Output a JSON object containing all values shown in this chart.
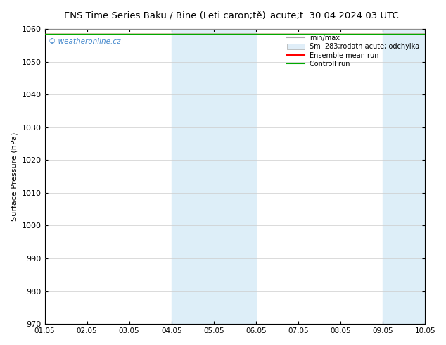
{
  "title": "ENS Time Series Baku / Bine (Leti caron;tě)",
  "title_right": "acute;t. 30.04.2024 03 UTC",
  "ylabel": "Surface Pressure (hPa)",
  "ylim": [
    970,
    1060
  ],
  "yticks": [
    970,
    980,
    990,
    1000,
    1010,
    1020,
    1030,
    1040,
    1050,
    1060
  ],
  "x_start": "2024-05-01",
  "x_end": "2024-05-10",
  "x_labels": [
    "01.05",
    "02.05",
    "03.05",
    "04.05",
    "05.05",
    "06.05",
    "07.05",
    "08.05",
    "09.05",
    "10.05"
  ],
  "shaded_regions": [
    {
      "x0": "2024-05-04",
      "x1": "2024-05-06",
      "color": "#ddeef8"
    },
    {
      "x0": "2024-05-09",
      "x1": "2024-05-10",
      "color": "#ddeef8"
    }
  ],
  "watermark": "© weatheronline.cz",
  "watermark_color": "#4488cc",
  "background_color": "#ffffff",
  "plot_bg_color": "#ffffff",
  "border_color": "#000000",
  "grid_color": "#cccccc",
  "value_line": 1058.5
}
